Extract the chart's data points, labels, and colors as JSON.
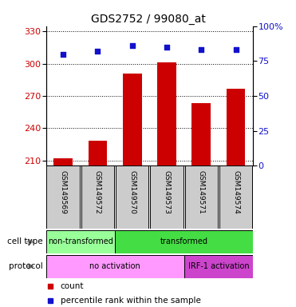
{
  "title": "GDS2752 / 99080_at",
  "samples": [
    "GSM149569",
    "GSM149572",
    "GSM149570",
    "GSM149573",
    "GSM149571",
    "GSM149574"
  ],
  "counts": [
    212,
    228,
    291,
    301,
    263,
    277
  ],
  "percentiles": [
    80,
    82,
    86,
    85,
    83,
    83
  ],
  "ylim_left": [
    205,
    335
  ],
  "yticks_left": [
    210,
    240,
    270,
    300,
    330
  ],
  "ylim_right": [
    0,
    100
  ],
  "yticks_right": [
    0,
    25,
    50,
    75,
    100
  ],
  "bar_color": "#cc0000",
  "dot_color": "#1111cc",
  "cell_type_labels": [
    {
      "label": "non-transformed",
      "start": 0,
      "end": 2,
      "color": "#99ff99"
    },
    {
      "label": "transformed",
      "start": 2,
      "end": 6,
      "color": "#44dd44"
    }
  ],
  "protocol_labels": [
    {
      "label": "no activation",
      "start": 0,
      "end": 4,
      "color": "#ff99ff"
    },
    {
      "label": "IRF-1 activation",
      "start": 4,
      "end": 6,
      "color": "#cc44cc"
    }
  ],
  "legend_count_color": "#cc0000",
  "legend_dot_color": "#1111cc",
  "tick_label_color_left": "#cc0000",
  "tick_label_color_right": "#1111cc",
  "sample_box_color": "#cccccc",
  "arrow_color": "#999999"
}
